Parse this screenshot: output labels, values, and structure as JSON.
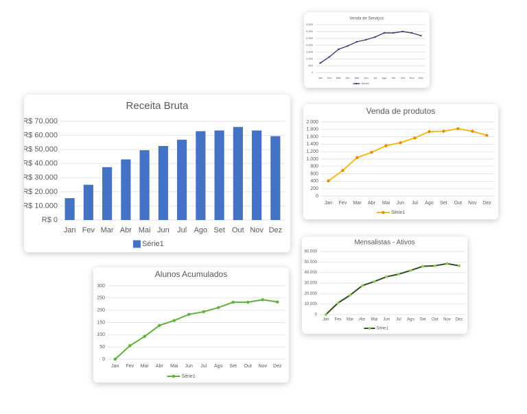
{
  "chart_data": [
    {
      "type": "line",
      "title": "Venda de Serviços",
      "categories": [
        "Jan",
        "Fev",
        "Mar",
        "Abr",
        "Mai",
        "Jun",
        "Jul",
        "Ago",
        "Set",
        "Out",
        "Nov",
        "Dez"
      ],
      "series": [
        {
          "name": "Série1",
          "color": "#3b3b78",
          "values": [
            700,
            1150,
            1700,
            1950,
            2250,
            2400,
            2600,
            2900,
            2900,
            3000,
            2900,
            2700
          ]
        }
      ],
      "ylim": [
        0,
        3500
      ],
      "yticks": [
        0,
        500,
        {
          "value": 1000,
          "label": "1.000"
        },
        {
          "value": 1500,
          "label": "1.500"
        },
        {
          "value": 2000,
          "label": "2.000"
        },
        {
          "value": 2500,
          "label": "2.500"
        },
        {
          "value": 3000,
          "label": "3.000"
        },
        {
          "value": 3500,
          "label": "3.500"
        }
      ],
      "grid": true,
      "legend": "bottom"
    },
    {
      "type": "bar",
      "title": "Receita Bruta",
      "categories": [
        "Jan",
        "Fev",
        "Mar",
        "Abr",
        "Mai",
        "Jun",
        "Jul",
        "Ago",
        "Set",
        "Out",
        "Nov",
        "Dez"
      ],
      "series": [
        {
          "name": "Série1",
          "color": "#4472c4",
          "values": [
            15500,
            25000,
            37500,
            43000,
            49500,
            52500,
            57000,
            63000,
            63500,
            66000,
            63500,
            59500
          ]
        }
      ],
      "ylim": [
        0,
        70000
      ],
      "yticks": [
        {
          "value": 0,
          "label": "R$ 0"
        },
        {
          "value": 10000,
          "label": "R$ 10.000"
        },
        {
          "value": 20000,
          "label": "R$ 20.000"
        },
        {
          "value": 30000,
          "label": "R$ 30.000"
        },
        {
          "value": 40000,
          "label": "R$ 40.000"
        },
        {
          "value": 50000,
          "label": "R$ 50.000"
        },
        {
          "value": 60000,
          "label": "R$ 60.000"
        },
        {
          "value": 70000,
          "label": "R$ 70.000"
        }
      ],
      "grid": true,
      "legend": "bottom"
    },
    {
      "type": "line",
      "title": "Venda de produtos",
      "categories": [
        "Jan",
        "Fev",
        "Mar",
        "Abr",
        "Mai",
        "Jun",
        "Jul",
        "Ago",
        "Set",
        "Out",
        "Nov",
        "Dez"
      ],
      "series": [
        {
          "name": "Série1",
          "color": "#f7b918",
          "marker_color": "#e98a10",
          "values": [
            410,
            690,
            1040,
            1180,
            1360,
            1440,
            1570,
            1740,
            1750,
            1820,
            1750,
            1640
          ]
        }
      ],
      "ylim": [
        0,
        2000
      ],
      "yticks": [
        0,
        200,
        400,
        600,
        800,
        {
          "value": 1000,
          "label": "1.000"
        },
        {
          "value": 1200,
          "label": "1.200"
        },
        {
          "value": 1400,
          "label": "1.400"
        },
        {
          "value": 1600,
          "label": "1.600"
        },
        {
          "value": 1800,
          "label": "1.800"
        },
        {
          "value": 2000,
          "label": "2.000"
        }
      ],
      "grid": true,
      "legend": "bottom"
    },
    {
      "type": "line",
      "title": "Mensalistas - Ativos",
      "categories": [
        "Jan",
        "Fev",
        "Mar",
        "Abr",
        "Mai",
        "Jun",
        "Jul",
        "Ago",
        "Set",
        "Out",
        "Nov",
        "Dez"
      ],
      "series": [
        {
          "name": "Série1",
          "color": "#2f4f1c",
          "marker_color": "#8fce5a",
          "values": [
            0,
            11000,
            18500,
            27500,
            31500,
            36000,
            38500,
            42000,
            46000,
            46500,
            48500,
            46500
          ]
        }
      ],
      "ylim": [
        0,
        60000
      ],
      "yticks": [
        0,
        {
          "value": 10000,
          "label": "10.000"
        },
        {
          "value": 20000,
          "label": "20.000"
        },
        {
          "value": 30000,
          "label": "30.000"
        },
        {
          "value": 40000,
          "label": "40.000"
        },
        {
          "value": 50000,
          "label": "50.000"
        },
        {
          "value": 60000,
          "label": "60.000"
        }
      ],
      "grid": true,
      "legend": "bottom"
    },
    {
      "type": "line",
      "title": "Alunos Acumulados",
      "categories": [
        "Jan",
        "Fev",
        "Mar",
        "Abr",
        "Mai",
        "Jun",
        "Jul",
        "Ago",
        "Set",
        "Out",
        "Nov",
        "Dez"
      ],
      "series": [
        {
          "name": "Série1",
          "color": "#5eb236",
          "values": [
            0,
            55,
            93,
            138,
            158,
            183,
            194,
            211,
            233,
            233,
            243,
            234
          ]
        }
      ],
      "ylim": [
        0,
        300
      ],
      "yticks": [
        0,
        50,
        100,
        150,
        200,
        250,
        300
      ],
      "grid": true,
      "legend": "bottom"
    }
  ]
}
